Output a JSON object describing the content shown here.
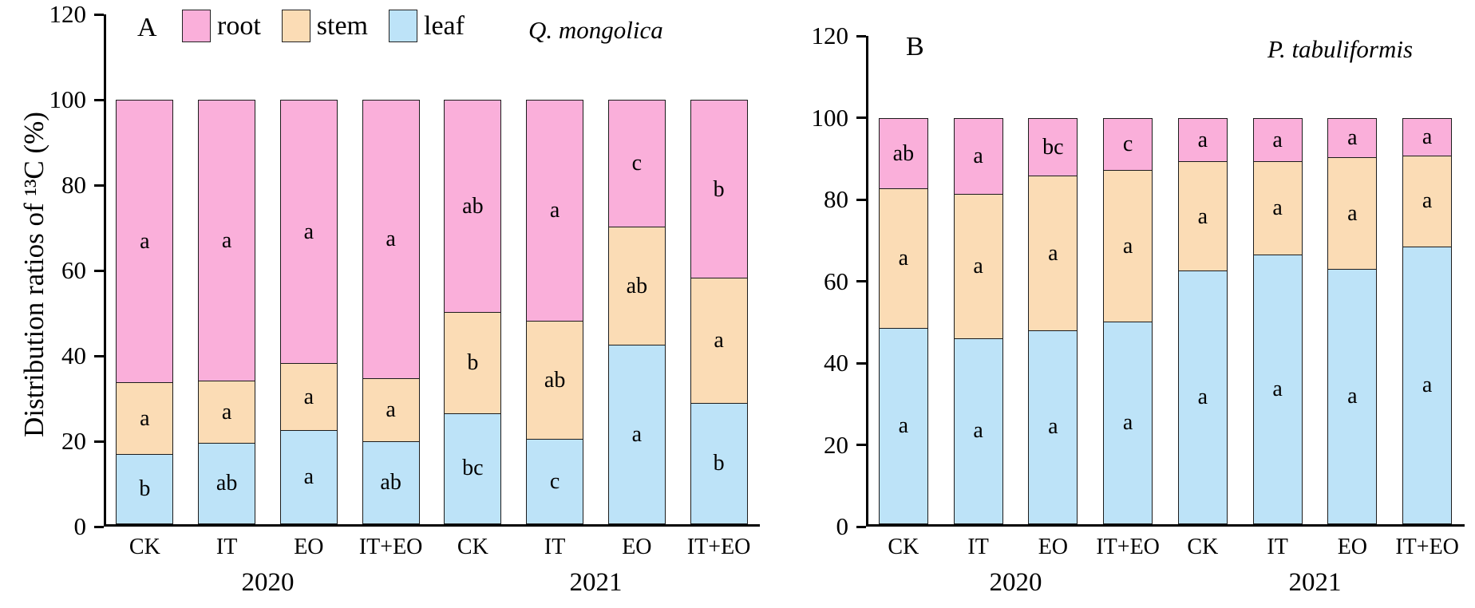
{
  "y_axis": {
    "label": "Distribution ratios of ¹³C (%)",
    "ticks": [
      0,
      20,
      40,
      60,
      80,
      100,
      120
    ],
    "max": 120
  },
  "legend": [
    {
      "label": "root",
      "color": "#FAAFDA"
    },
    {
      "label": "stem",
      "color": "#FBDCB5"
    },
    {
      "label": "leaf",
      "color": "#BDE3F8"
    }
  ],
  "colors": {
    "root": "#FAAFDA",
    "stem": "#FBDCB5",
    "leaf": "#BDE3F8",
    "border": "#1c1c1c"
  },
  "chart_data": [
    {
      "type": "bar",
      "stacked": true,
      "panel_letter": "A",
      "title": "Q. mongolica",
      "ylabel": "Distribution ratios of ¹³C (%)",
      "ylim": [
        0,
        120
      ],
      "yticks": [
        0,
        20,
        40,
        60,
        80,
        100,
        120
      ],
      "categories": [
        "CK",
        "IT",
        "EO",
        "IT+EO",
        "CK",
        "IT",
        "EO",
        "IT+EO"
      ],
      "group_labels": [
        {
          "label": "2020",
          "bars": [
            0,
            3
          ]
        },
        {
          "label": "2021",
          "bars": [
            4,
            7
          ]
        }
      ],
      "series": [
        {
          "name": "leaf",
          "color": "#BDE3F8",
          "values": [
            16.5,
            19,
            22,
            19.5,
            26,
            20,
            42,
            28.5
          ],
          "letters": [
            "b",
            "ab",
            "a",
            "ab",
            "bc",
            "c",
            "a",
            "b"
          ]
        },
        {
          "name": "stem",
          "color": "#FBDCB5",
          "values": [
            17,
            15,
            16,
            15,
            24,
            28,
            28,
            29.5
          ],
          "letters": [
            "a",
            "a",
            "a",
            "a",
            "b",
            "ab",
            "ab",
            "a"
          ]
        },
        {
          "name": "root",
          "color": "#FAAFDA",
          "values": [
            66.5,
            66,
            62,
            65.5,
            50,
            52,
            30,
            42
          ],
          "letters": [
            "a",
            "a",
            "a",
            "a",
            "ab",
            "a",
            "c",
            "b"
          ]
        }
      ]
    },
    {
      "type": "bar",
      "stacked": true,
      "panel_letter": "B",
      "title": "P. tabuliformis",
      "ylabel": "Distribution ratios of ¹³C (%)",
      "ylim": [
        0,
        120
      ],
      "yticks": [
        0,
        20,
        40,
        60,
        80,
        100,
        120
      ],
      "categories": [
        "CK",
        "IT",
        "EO",
        "IT+EO",
        "CK",
        "IT",
        "EO",
        "IT+EO"
      ],
      "group_labels": [
        {
          "label": "2020",
          "bars": [
            0,
            3
          ]
        },
        {
          "label": "2021",
          "bars": [
            4,
            7
          ]
        }
      ],
      "series": [
        {
          "name": "leaf",
          "color": "#BDE3F8",
          "values": [
            48,
            45.5,
            47.5,
            49.5,
            62,
            66,
            62.5,
            68
          ],
          "letters": [
            "a",
            "a",
            "a",
            "a",
            "a",
            "a",
            "a",
            "a"
          ]
        },
        {
          "name": "stem",
          "color": "#FBDCB5",
          "values": [
            34.5,
            35.5,
            38,
            37.5,
            27,
            23,
            27.5,
            22.5
          ],
          "letters": [
            "a",
            "a",
            "a",
            "a",
            "a",
            "a",
            "a",
            "a"
          ]
        },
        {
          "name": "root",
          "color": "#FAAFDA",
          "values": [
            17.5,
            19,
            14.5,
            13,
            11,
            11,
            10,
            9.5
          ],
          "letters": [
            "ab",
            "a",
            "bc",
            "c",
            "a",
            "a",
            "a",
            "a"
          ]
        }
      ]
    }
  ]
}
